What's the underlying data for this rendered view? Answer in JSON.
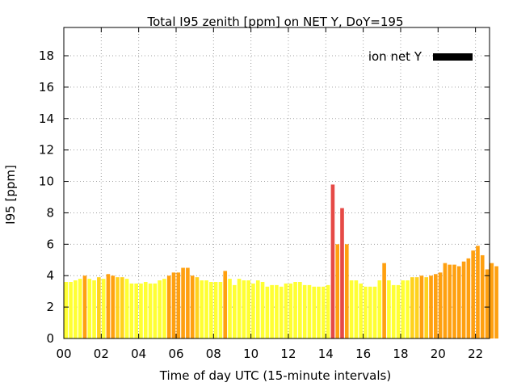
{
  "chart_data": {
    "type": "bar",
    "title": "Total I95 zenith [ppm] on NET Y, DoY=195",
    "xlabel": "Time of day UTC (15-minute intervals)",
    "ylabel": "I95 [ppm]",
    "xlim": [
      0,
      22.75
    ],
    "ylim": [
      0,
      19.8
    ],
    "x_ticks": [
      "00",
      "02",
      "04",
      "06",
      "08",
      "10",
      "12",
      "14",
      "16",
      "18",
      "20",
      "22"
    ],
    "y_ticks": [
      "0",
      "2",
      "4",
      "6",
      "8",
      "10",
      "12",
      "14",
      "16",
      "18"
    ],
    "grid": true,
    "legend": {
      "position": "top-right",
      "label": "ion net Y",
      "color": "#000000"
    },
    "bar_interval_hours": 0.25,
    "colors": {
      "low": "#ffff33",
      "medium": "#ffd21e",
      "high": "#ffa010",
      "very_high": "#e64a46"
    },
    "values": [
      3.6,
      3.6,
      3.7,
      3.8,
      4.0,
      3.8,
      3.7,
      3.9,
      3.8,
      4.1,
      4.0,
      3.9,
      3.9,
      3.8,
      3.5,
      3.5,
      3.5,
      3.6,
      3.5,
      3.5,
      3.7,
      3.8,
      4.0,
      4.2,
      4.2,
      4.5,
      4.5,
      4.0,
      3.9,
      3.7,
      3.7,
      3.6,
      3.6,
      3.6,
      4.3,
      3.8,
      3.4,
      3.8,
      3.7,
      3.7,
      3.5,
      3.7,
      3.6,
      3.3,
      3.4,
      3.4,
      3.3,
      3.5,
      3.5,
      3.6,
      3.6,
      3.4,
      3.4,
      3.3,
      3.3,
      3.3,
      3.4,
      9.8,
      6.0,
      8.3,
      6.0,
      3.7,
      3.7,
      3.5,
      3.3,
      3.3,
      3.3,
      3.7,
      4.8,
      3.7,
      3.4,
      3.4,
      3.7,
      3.7,
      3.9,
      3.9,
      4.0,
      3.9,
      4.0,
      4.1,
      4.2,
      4.8,
      4.7,
      4.7,
      4.6,
      4.9,
      5.1,
      5.6,
      5.9,
      5.3,
      4.4,
      4.8,
      4.6
    ]
  }
}
